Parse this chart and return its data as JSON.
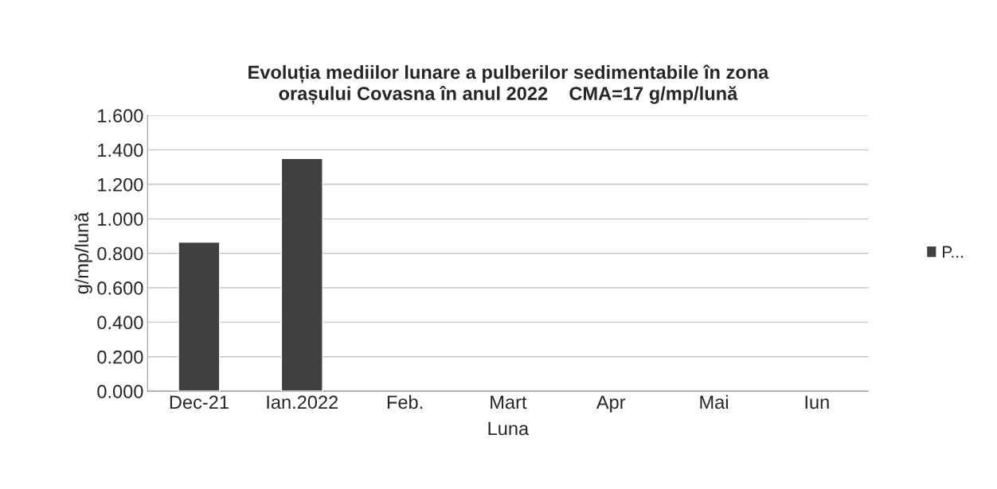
{
  "chart_data": {
    "type": "bar",
    "title": "Evoluția mediilor lunare a pulberilor sedimentabile în zona\norașului Covasna în anul 2022    CMA=17 g/mp/lună",
    "xlabel": "Luna",
    "ylabel": "g/mp/lună",
    "categories": [
      "Dec-21",
      "Ian.2022",
      "Feb.",
      "Mart",
      "Apr",
      "Mai",
      "Iun"
    ],
    "series": [
      {
        "name": "P...",
        "color": "#404040",
        "values": [
          0.865,
          1.35,
          null,
          null,
          null,
          null,
          null
        ]
      }
    ],
    "ylim": [
      0,
      1.6
    ],
    "yticks": [
      {
        "value": 0,
        "label": "0.000"
      },
      {
        "value": 0.2,
        "label": "0.200"
      },
      {
        "value": 0.4,
        "label": "0.400"
      },
      {
        "value": 0.6,
        "label": "0.600"
      },
      {
        "value": 0.8,
        "label": "0.800"
      },
      {
        "value": 1.0,
        "label": "1.000"
      },
      {
        "value": 1.2,
        "label": "1.200"
      },
      {
        "value": 1.4,
        "label": "1.400"
      },
      {
        "value": 1.6,
        "label": "1.600"
      }
    ],
    "grid": "y",
    "legend": "right"
  }
}
